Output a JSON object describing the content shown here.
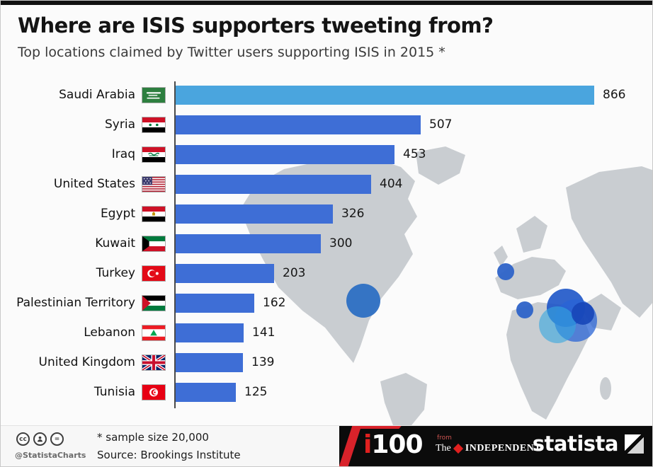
{
  "title": "Where are ISIS supporters tweeting from?",
  "subtitle": "Top locations claimed by Twitter users supporting ISIS in 2015 *",
  "chart_data": {
    "type": "bar",
    "orientation": "horizontal",
    "title": "Where are ISIS supporters tweeting from?",
    "subtitle": "Top locations claimed by Twitter users supporting ISIS in 2015 *",
    "categories": [
      "Saudi Arabia",
      "Syria",
      "Iraq",
      "United States",
      "Egypt",
      "Kuwait",
      "Turkey",
      "Palestinian Territory",
      "Lebanon",
      "United Kingdom",
      "Tunisia"
    ],
    "values": [
      866,
      507,
      453,
      404,
      326,
      300,
      203,
      162,
      141,
      139,
      125
    ],
    "flags": [
      "sa",
      "sy",
      "iq",
      "us",
      "eg",
      "kw",
      "tr",
      "ps",
      "lb",
      "gb",
      "tn"
    ],
    "xlim": [
      0,
      900
    ],
    "grid": false,
    "legend": false,
    "value_labels": true,
    "colors": {
      "highlight_bar": "#4aa5de",
      "bar": "#3e6ed6",
      "axis": "#4a4a4a",
      "map_land": "#c9cdd1"
    },
    "map_bubbles": [
      {
        "x": 512,
        "y": 424,
        "r": 24,
        "color": "#2d6fc3",
        "opacity": 0.95
      },
      {
        "x": 713,
        "y": 383,
        "r": 12,
        "color": "#2e63c8",
        "opacity": 0.95
      },
      {
        "x": 740,
        "y": 437,
        "r": 12,
        "color": "#2e63c8",
        "opacity": 0.95
      },
      {
        "x": 798,
        "y": 434,
        "r": 27,
        "color": "#1d55c8",
        "opacity": 0.9
      },
      {
        "x": 812,
        "y": 452,
        "r": 30,
        "color": "#2a64d6",
        "opacity": 0.75
      },
      {
        "x": 786,
        "y": 458,
        "r": 26,
        "color": "#35a7e0",
        "opacity": 0.6
      },
      {
        "x": 822,
        "y": 442,
        "r": 16,
        "color": "#1746b8",
        "opacity": 0.9
      }
    ]
  },
  "footer": {
    "handle": "@StatistaCharts",
    "note": "* sample size 20,000",
    "source": "Source: Brookings Institute",
    "i100": {
      "i": "i",
      "rest": "100"
    },
    "independent": {
      "from": "from",
      "the": "The",
      "name": "INDEPENDENT"
    },
    "statista": "statista"
  }
}
